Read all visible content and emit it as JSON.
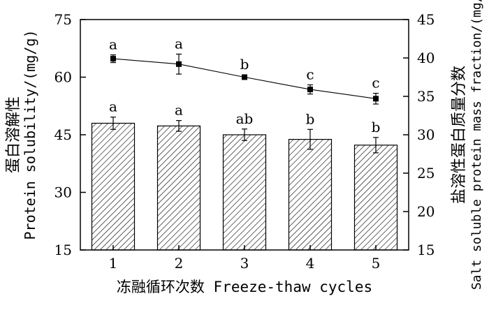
{
  "chart_data": {
    "type": "bar+line",
    "categories": [
      "1",
      "2",
      "3",
      "4",
      "5"
    ],
    "xlabel": "冻融循环次数 Freeze-thaw cycles",
    "ylabel_left": "蛋白溶解性 Protein solubility/(mg/g)",
    "ylabel_left_cn": "蛋白溶解性",
    "ylabel_left_en": "Protein solubility/(mg/g)",
    "ylabel_right": "盐溶性蛋白质量分数 Salt soluble protein mass fraction/(mg/g)",
    "ylabel_right_cn": "盐溶性蛋白质量分数",
    "ylabel_right_en": "Salt soluble protein mass fraction/(mg/g)",
    "left_axis": {
      "ylim": [
        15,
        75
      ],
      "ticks": [
        "15",
        "30",
        "45",
        "60",
        "75"
      ]
    },
    "right_axis": {
      "ylim": [
        15,
        45
      ],
      "ticks": [
        "15",
        "20",
        "25",
        "30",
        "35",
        "40",
        "45"
      ]
    },
    "bars": {
      "axis": "left",
      "values": [
        48.0,
        47.3,
        45.0,
        43.8,
        42.3
      ],
      "errors": [
        1.6,
        1.4,
        1.5,
        2.6,
        2.0
      ],
      "labels": [
        "a",
        "a",
        "ab",
        "b",
        "b"
      ],
      "fill": "hatched"
    },
    "line": {
      "axis": "right",
      "values": [
        39.9,
        39.2,
        37.5,
        35.9,
        34.7
      ],
      "errors": [
        0.5,
        1.3,
        0.3,
        0.6,
        0.7
      ],
      "labels": [
        "a",
        "a",
        "b",
        "c",
        "c"
      ],
      "marker": "square"
    },
    "grid": false,
    "colors": {
      "ink": "#000000",
      "bar_fill": "#ffffff"
    }
  }
}
